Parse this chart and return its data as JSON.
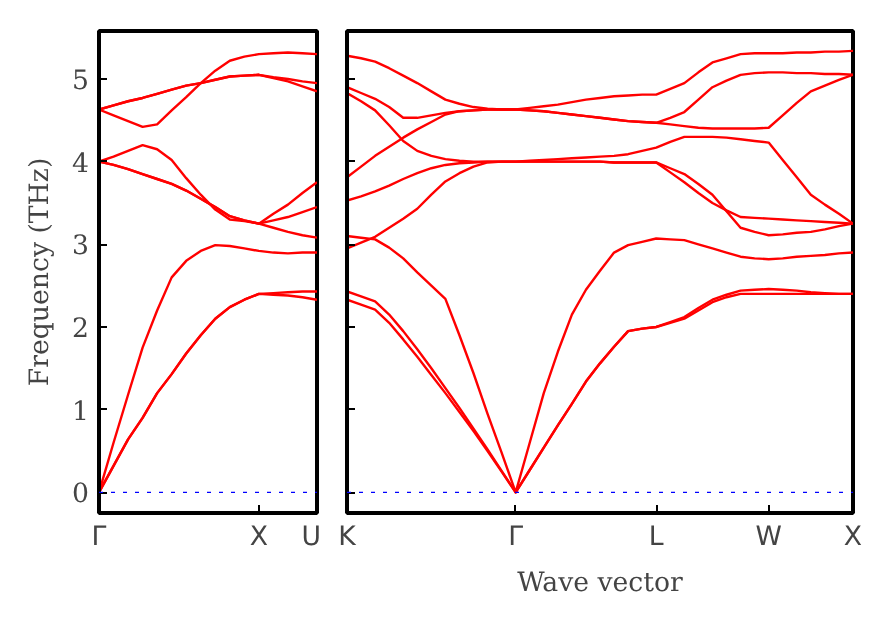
{
  "chart_data": [
    {
      "type": "line",
      "ylabel": "Frequency (THz)",
      "ylim": [
        -0.25,
        5.58
      ],
      "yticks": [
        0,
        1,
        2,
        3,
        4,
        5
      ],
      "grid": false,
      "line_style": "solid",
      "categories": [
        "Γ",
        null,
        null,
        null,
        null,
        null,
        null,
        null,
        null,
        null,
        null,
        "X",
        null,
        null,
        null,
        "U"
      ],
      "ref_lines": [
        {
          "axis": "y",
          "value": 0,
          "color": "#0000ff",
          "line_style": "dotted"
        }
      ],
      "series": [
        {
          "color": "#ff0000",
          "values": [
            0,
            0.32,
            0.64,
            0.9,
            1.2,
            1.43,
            1.68,
            1.9,
            2.1,
            2.24,
            2.33,
            2.4,
            2.39,
            2.38,
            2.36,
            2.33
          ]
        },
        {
          "color": "#ff0000",
          "values": [
            0,
            0.32,
            0.64,
            0.9,
            1.2,
            1.43,
            1.68,
            1.9,
            2.1,
            2.24,
            2.33,
            2.4,
            2.41,
            2.42,
            2.43,
            2.43
          ]
        },
        {
          "color": "#ff0000",
          "values": [
            0,
            0.6,
            1.18,
            1.75,
            2.2,
            2.6,
            2.8,
            2.92,
            2.99,
            2.98,
            2.95,
            2.92,
            2.9,
            2.89,
            2.9,
            2.9
          ]
        },
        {
          "color": "#ff0000",
          "values": [
            4.0,
            3.96,
            3.91,
            3.85,
            3.79,
            3.73,
            3.65,
            3.55,
            3.45,
            3.34,
            3.29,
            3.25,
            3.2,
            3.15,
            3.11,
            3.08
          ]
        },
        {
          "color": "#ff0000",
          "values": [
            4.0,
            3.96,
            3.91,
            3.85,
            3.79,
            3.73,
            3.65,
            3.55,
            3.45,
            3.34,
            3.29,
            3.25,
            3.29,
            3.33,
            3.39,
            3.45
          ]
        },
        {
          "color": "#ff0000",
          "values": [
            4.0,
            4.06,
            4.13,
            4.2,
            4.15,
            4.02,
            3.8,
            3.6,
            3.42,
            3.3,
            3.28,
            3.25,
            3.37,
            3.48,
            3.62,
            3.75
          ]
        },
        {
          "color": "#ff0000",
          "values": [
            4.63,
            4.56,
            4.49,
            4.42,
            4.45,
            4.62,
            4.78,
            4.95,
            5.1,
            5.22,
            5.27,
            5.3,
            5.31,
            5.32,
            5.31,
            5.3
          ]
        },
        {
          "color": "#ff0000",
          "values": [
            4.63,
            4.68,
            4.73,
            4.77,
            4.82,
            4.87,
            4.92,
            4.95,
            4.99,
            5.03,
            5.04,
            5.05,
            5.02,
            5.0,
            4.97,
            4.95
          ]
        },
        {
          "color": "#ff0000",
          "values": [
            4.63,
            4.68,
            4.73,
            4.77,
            4.82,
            4.87,
            4.92,
            4.95,
            4.99,
            5.03,
            5.04,
            5.05,
            5.01,
            4.97,
            4.91,
            4.85
          ]
        }
      ]
    },
    {
      "type": "line",
      "xlabel": "Wave vector",
      "ylim": [
        -0.25,
        5.58
      ],
      "tick_labels": "x",
      "yticks": [
        0,
        1,
        2,
        3,
        4,
        5
      ],
      "grid": false,
      "line_style": "solid",
      "categories": [
        "K",
        null,
        null,
        null,
        null,
        null,
        null,
        null,
        null,
        null,
        null,
        null,
        "Γ",
        null,
        null,
        null,
        null,
        null,
        null,
        null,
        null,
        null,
        "L",
        null,
        null,
        null,
        null,
        null,
        null,
        null,
        "W",
        null,
        null,
        null,
        null,
        null,
        "X"
      ],
      "ref_lines": [
        {
          "axis": "y",
          "value": 0,
          "color": "#0000ff",
          "line_style": "dotted"
        }
      ],
      "series": [
        {
          "color": "#ff0000",
          "values": [
            2.33,
            2.27,
            2.21,
            2.05,
            1.85,
            1.64,
            1.42,
            1.2,
            0.97,
            0.74,
            0.5,
            0.25,
            0,
            0.27,
            0.54,
            0.81,
            1.07,
            1.34,
            1.56,
            1.76,
            1.95,
            1.98,
            2.0,
            2.05,
            2.1,
            2.2,
            2.3,
            2.36,
            2.4,
            2.4,
            2.4,
            2.4,
            2.4,
            2.4,
            2.4,
            2.4,
            2.4
          ]
        },
        {
          "color": "#ff0000",
          "values": [
            2.43,
            2.37,
            2.31,
            2.15,
            1.95,
            1.73,
            1.5,
            1.26,
            1.02,
            0.77,
            0.52,
            0.26,
            0,
            0.27,
            0.54,
            0.81,
            1.07,
            1.34,
            1.56,
            1.76,
            1.95,
            1.98,
            2.0,
            2.06,
            2.12,
            2.23,
            2.33,
            2.39,
            2.44,
            2.45,
            2.46,
            2.45,
            2.44,
            2.42,
            2.41,
            2.4,
            2.4
          ]
        },
        {
          "color": "#ff0000",
          "values": [
            3.1,
            3.08,
            3.06,
            2.96,
            2.83,
            2.66,
            2.5,
            2.34,
            1.9,
            1.44,
            0.95,
            0.48,
            0,
            0.6,
            1.2,
            1.7,
            2.15,
            2.45,
            2.68,
            2.9,
            2.99,
            3.03,
            3.07,
            3.06,
            3.05,
            3.0,
            2.95,
            2.9,
            2.85,
            2.83,
            2.82,
            2.83,
            2.85,
            2.86,
            2.87,
            2.89,
            2.9
          ]
        },
        {
          "color": "#ff0000",
          "values": [
            2.95,
            3.02,
            3.09,
            3.2,
            3.31,
            3.43,
            3.6,
            3.76,
            3.86,
            3.94,
            3.99,
            4.0,
            4.0,
            4.0,
            4.0,
            4.0,
            4.0,
            4.0,
            4.0,
            3.99,
            3.99,
            3.99,
            3.99,
            3.87,
            3.75,
            3.62,
            3.5,
            3.41,
            3.33,
            3.32,
            3.31,
            3.3,
            3.29,
            3.28,
            3.27,
            3.26,
            3.25
          ]
        },
        {
          "color": "#ff0000",
          "values": [
            3.53,
            3.58,
            3.64,
            3.71,
            3.79,
            3.86,
            3.92,
            3.96,
            3.98,
            3.99,
            4.0,
            4.0,
            4.0,
            4.0,
            4.0,
            4.0,
            4.0,
            4.0,
            4.0,
            3.99,
            3.99,
            3.99,
            3.99,
            3.92,
            3.85,
            3.73,
            3.6,
            3.4,
            3.2,
            3.15,
            3.11,
            3.12,
            3.14,
            3.15,
            3.18,
            3.22,
            3.25
          ]
        },
        {
          "color": "#ff0000",
          "values": [
            4.83,
            4.73,
            4.62,
            4.44,
            4.25,
            4.13,
            4.07,
            4.03,
            4.01,
            4.0,
            4.0,
            4.0,
            4.0,
            4.01,
            4.02,
            4.03,
            4.04,
            4.05,
            4.06,
            4.07,
            4.09,
            4.13,
            4.17,
            4.24,
            4.3,
            4.3,
            4.3,
            4.29,
            4.27,
            4.25,
            4.23,
            4.02,
            3.81,
            3.6,
            3.48,
            3.37,
            3.25
          ]
        },
        {
          "color": "#ff0000",
          "values": [
            3.81,
            3.94,
            4.07,
            4.18,
            4.29,
            4.39,
            4.48,
            4.57,
            4.61,
            4.62,
            4.63,
            4.63,
            4.63,
            4.62,
            4.61,
            4.59,
            4.57,
            4.55,
            4.53,
            4.51,
            4.49,
            4.48,
            4.47,
            4.45,
            4.43,
            4.41,
            4.4,
            4.4,
            4.4,
            4.4,
            4.41,
            4.56,
            4.71,
            4.85,
            4.92,
            4.99,
            5.05
          ]
        },
        {
          "color": "#ff0000",
          "values": [
            4.9,
            4.83,
            4.76,
            4.66,
            4.53,
            4.53,
            4.56,
            4.59,
            4.61,
            4.62,
            4.63,
            4.63,
            4.63,
            4.62,
            4.61,
            4.59,
            4.57,
            4.55,
            4.53,
            4.51,
            4.49,
            4.48,
            4.47,
            4.53,
            4.6,
            4.75,
            4.9,
            4.98,
            5.05,
            5.07,
            5.08,
            5.08,
            5.07,
            5.07,
            5.06,
            5.06,
            5.05
          ]
        },
        {
          "color": "#ff0000",
          "values": [
            5.28,
            5.25,
            5.21,
            5.13,
            5.04,
            4.95,
            4.85,
            4.75,
            4.7,
            4.66,
            4.64,
            4.63,
            4.63,
            4.65,
            4.67,
            4.69,
            4.72,
            4.75,
            4.77,
            4.79,
            4.8,
            4.81,
            4.81,
            4.88,
            4.95,
            5.08,
            5.2,
            5.25,
            5.3,
            5.31,
            5.31,
            5.31,
            5.32,
            5.32,
            5.33,
            5.33,
            5.34
          ]
        }
      ]
    }
  ]
}
